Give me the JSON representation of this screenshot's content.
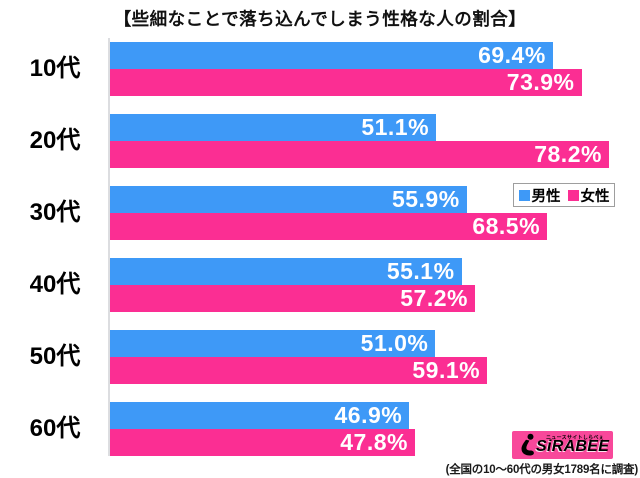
{
  "chart_data": {
    "type": "bar",
    "orientation": "horizontal",
    "title": "【些細なことで落ち込んでしまう性格な人の割合】",
    "categories": [
      "10代",
      "20代",
      "30代",
      "40代",
      "50代",
      "60代"
    ],
    "series": [
      {
        "key": "male",
        "name": "男性",
        "color": "#3e99f7",
        "values": [
          69.4,
          51.1,
          55.9,
          55.1,
          51.0,
          46.9
        ]
      },
      {
        "key": "female",
        "name": "女性",
        "color": "#fb2e93",
        "values": [
          73.9,
          78.2,
          68.5,
          57.2,
          59.1,
          47.8
        ]
      }
    ],
    "value_suffix": "%",
    "xlim": [
      0,
      81.5
    ],
    "grid": false,
    "legend_position": "right-middle",
    "value_labels": "inside-end"
  },
  "footer": {
    "note": "(全国の10〜60代の男女1789名に調査)"
  },
  "logo": {
    "tagline": "ニュースサイトしらべぇ",
    "wordmark": "SiRABEE",
    "bg_color": "#f8489a"
  },
  "colors": {
    "male_bar": "#3e99f7",
    "female_bar": "#fb2e93",
    "axis_line": "#dcdde0",
    "value_label": "#ffffff",
    "background": "#ffffff"
  }
}
